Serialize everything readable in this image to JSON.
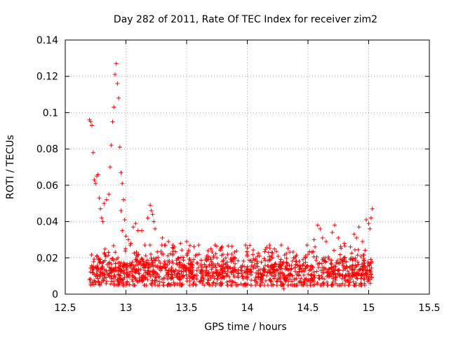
{
  "chart_data": {
    "type": "scatter",
    "title": "Day 282 of 2011, Rate Of TEC Index for receiver zim2",
    "xlabel": "GPS time / hours",
    "ylabel": "ROTI / TECUs",
    "xlim": [
      12.5,
      15.5
    ],
    "ylim": [
      0,
      0.14
    ],
    "xticks": [
      12.5,
      13,
      13.5,
      14,
      14.5,
      15,
      15.5
    ],
    "xtick_labels": [
      "12.5",
      "13",
      "13.5",
      "14",
      "14.5",
      "15",
      "15.5"
    ],
    "yticks": [
      0,
      0.02,
      0.04,
      0.06,
      0.08,
      0.1,
      0.12,
      0.14
    ],
    "ytick_labels": [
      "0",
      "0.02",
      "0.04",
      "0.06",
      "0.08",
      "0.1",
      "0.12",
      "0.14"
    ],
    "grid": true,
    "marker": "+",
    "series": [
      {
        "name": "zim2",
        "color": "#ff0000",
        "points": [
          [
            12.7,
            0.096
          ],
          [
            12.71,
            0.095
          ],
          [
            12.72,
            0.093
          ],
          [
            12.73,
            0.078
          ],
          [
            12.74,
            0.063
          ],
          [
            12.75,
            0.061
          ],
          [
            12.76,
            0.065
          ],
          [
            12.77,
            0.066
          ],
          [
            12.78,
            0.053
          ],
          [
            12.79,
            0.047
          ],
          [
            12.8,
            0.042
          ],
          [
            12.81,
            0.04
          ],
          [
            12.82,
            0.05
          ],
          [
            12.84,
            0.052
          ],
          [
            12.86,
            0.055
          ],
          [
            12.87,
            0.07
          ],
          [
            12.88,
            0.082
          ],
          [
            12.89,
            0.095
          ],
          [
            12.9,
            0.103
          ],
          [
            12.91,
            0.121
          ],
          [
            12.92,
            0.127
          ],
          [
            12.93,
            0.116
          ],
          [
            12.94,
            0.108
          ],
          [
            12.95,
            0.081
          ],
          [
            12.96,
            0.067
          ],
          [
            12.97,
            0.061
          ],
          [
            12.98,
            0.052
          ],
          [
            12.96,
            0.046
          ],
          [
            12.99,
            0.041
          ],
          [
            12.97,
            0.035
          ],
          [
            13.0,
            0.032
          ],
          [
            13.02,
            0.03
          ],
          [
            13.04,
            0.028
          ],
          [
            13.06,
            0.037
          ],
          [
            13.08,
            0.039
          ],
          [
            13.1,
            0.035
          ],
          [
            13.13,
            0.035
          ],
          [
            13.18,
            0.042
          ],
          [
            13.2,
            0.049
          ],
          [
            13.21,
            0.046
          ],
          [
            13.22,
            0.044
          ],
          [
            13.23,
            0.04
          ],
          [
            13.24,
            0.036
          ],
          [
            13.3,
            0.031
          ],
          [
            13.35,
            0.029
          ],
          [
            13.4,
            0.026
          ],
          [
            13.45,
            0.028
          ],
          [
            13.5,
            0.029
          ],
          [
            13.6,
            0.027
          ],
          [
            13.7,
            0.025
          ],
          [
            13.8,
            0.022
          ],
          [
            13.9,
            0.02
          ],
          [
            14.0,
            0.022
          ],
          [
            14.1,
            0.021
          ],
          [
            14.2,
            0.023
          ],
          [
            14.28,
            0.027
          ],
          [
            14.3,
            0.003
          ],
          [
            14.4,
            0.018
          ],
          [
            14.5,
            0.022
          ],
          [
            14.55,
            0.03
          ],
          [
            14.58,
            0.038
          ],
          [
            14.6,
            0.036
          ],
          [
            14.62,
            0.031
          ],
          [
            14.65,
            0.029
          ],
          [
            14.7,
            0.034
          ],
          [
            14.72,
            0.038
          ],
          [
            14.75,
            0.031
          ],
          [
            14.8,
            0.028
          ],
          [
            14.85,
            0.026
          ],
          [
            14.88,
            0.033
          ],
          [
            14.9,
            0.031
          ],
          [
            14.92,
            0.037
          ],
          [
            14.95,
            0.029
          ],
          [
            14.98,
            0.041
          ],
          [
            15.0,
            0.039
          ],
          [
            15.01,
            0.036
          ],
          [
            15.02,
            0.042
          ],
          [
            15.03,
            0.047
          ]
        ],
        "dense_band": {
          "x_range": [
            12.7,
            15.03
          ],
          "y_range": [
            0.003,
            0.027
          ],
          "typical_y": 0.012,
          "approx_count": 1400
        }
      }
    ]
  }
}
